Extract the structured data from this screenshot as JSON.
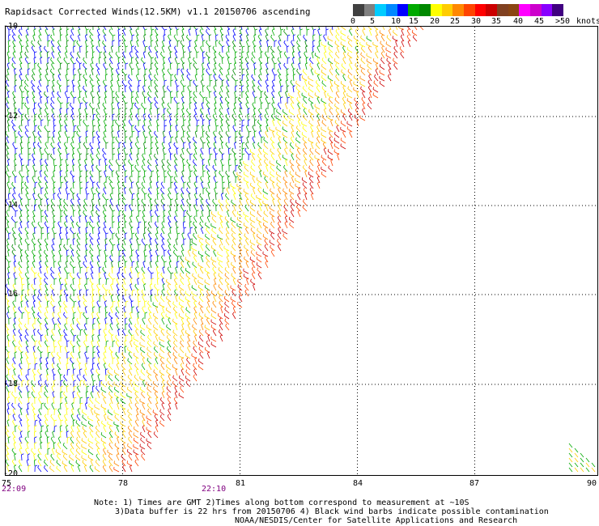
{
  "header": {
    "title": "Rapidsact Corrected Winds(12.5KM) v1.1 20150706 ascending"
  },
  "colorbar": {
    "colors": [
      "#404040",
      "#808080",
      "#00ccff",
      "#0088ff",
      "#0000ff",
      "#00aa00",
      "#008800",
      "#ffff00",
      "#ffcc00",
      "#ff8800",
      "#ff4400",
      "#ff0000",
      "#cc0000",
      "#804020",
      "#8b4513",
      "#ff00ff",
      "#cc00cc",
      "#8800ff",
      "#400080"
    ],
    "labels": [
      "0",
      "5",
      "10",
      "15",
      "20",
      "25",
      "30",
      "35",
      "40",
      "45",
      ">50"
    ],
    "units": "knots"
  },
  "map": {
    "lat_labels": [
      "-10",
      "-12",
      "-14",
      "-16",
      "-18",
      "-20"
    ],
    "lon_labels": [
      "75",
      "78",
      "81",
      "84",
      "87",
      "90"
    ],
    "lat_range": [
      -20,
      -10
    ],
    "lon_range": [
      75,
      90
    ],
    "grid": "dotted",
    "swath_color_zones": [
      "green",
      "blue",
      "yellow",
      "orange",
      "red"
    ]
  },
  "times": {
    "left": "22:09",
    "mid": "22:10"
  },
  "footer": {
    "line1": "Note: 1) Times are GMT 2)Times along bottom correspond to measurement at ~10S",
    "line2": "3)Data buffer is 22 hrs from 20150706 4) Black wind barbs indicate possible contamination",
    "line3": "NOAA/NESDIS/Center for Satellite Applications and Research"
  }
}
